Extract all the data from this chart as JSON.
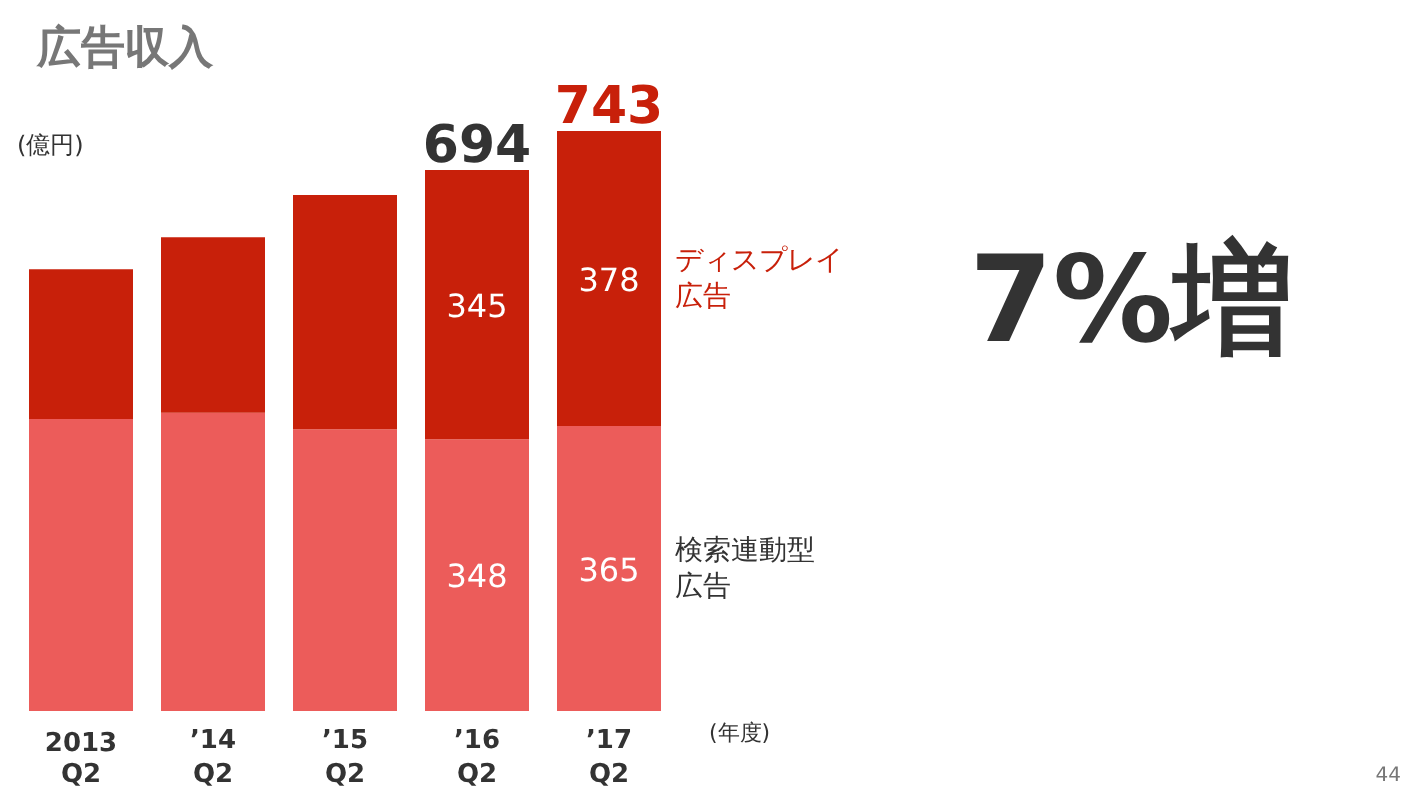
{
  "chart_data": {
    "type": "bar",
    "stacked": true,
    "title": "広告収入",
    "ylabel": "(億円)",
    "xlabel": "(年度)",
    "categories": [
      "2013\nQ2",
      "’14\nQ2",
      "’15\nQ2",
      "’16\nQ2",
      "’17\nQ2"
    ],
    "series": [
      {
        "name": "検索連動型広告",
        "color": "#ec5c5a",
        "values": [
          374,
          382,
          361,
          348,
          365
        ],
        "value_labels": [
          null,
          null,
          null,
          "348",
          "365"
        ]
      },
      {
        "name": "ディスプレイ広告",
        "color": "#c8200a",
        "values": [
          192,
          225,
          300,
          345,
          378
        ],
        "value_labels": [
          null,
          null,
          null,
          "345",
          "378"
        ]
      }
    ],
    "totals": [
      null,
      null,
      null,
      "694",
      "743"
    ],
    "annotations": [
      "7%増",
      "44"
    ],
    "grid": false
  }
}
